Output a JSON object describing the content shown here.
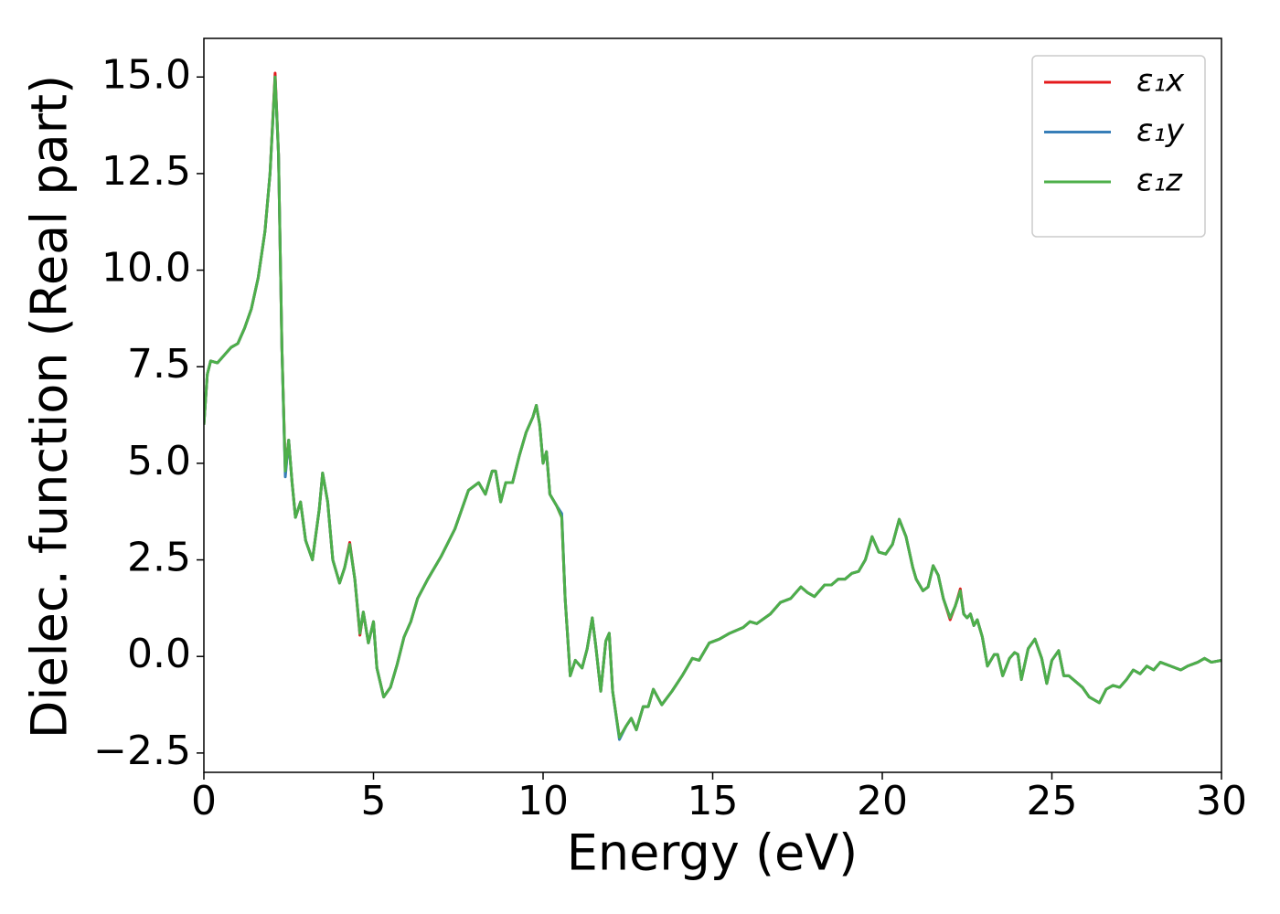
{
  "chart_data": {
    "type": "line",
    "xlabel": "Energy (eV)",
    "ylabel": "Dielec. function (Real part)",
    "xlim": [
      0,
      30
    ],
    "ylim": [
      -3,
      16
    ],
    "xticks": [
      0,
      5,
      10,
      15,
      20,
      25,
      30
    ],
    "yticks": [
      {
        "value": -2.5,
        "label": "−2.5"
      },
      {
        "value": 0,
        "label": "0.0"
      },
      2.5,
      {
        "value": 5,
        "label": "5.0"
      },
      7.5,
      {
        "value": 10,
        "label": "10.0"
      },
      12.5,
      {
        "value": 15,
        "label": "15.0"
      }
    ],
    "legend": "upper right",
    "x": [
      0,
      0.1,
      0.2,
      0.4,
      0.6,
      0.8,
      1.0,
      1.2,
      1.4,
      1.6,
      1.8,
      1.95,
      2.1,
      2.2,
      2.3,
      2.4,
      2.5,
      2.6,
      2.7,
      2.85,
      3.0,
      3.2,
      3.4,
      3.5,
      3.65,
      3.8,
      4.0,
      4.15,
      4.3,
      4.45,
      4.6,
      4.7,
      4.85,
      5.0,
      5.1,
      5.3,
      5.5,
      5.7,
      5.9,
      6.1,
      6.3,
      6.6,
      7.0,
      7.4,
      7.8,
      8.1,
      8.3,
      8.5,
      8.6,
      8.75,
      8.9,
      9.1,
      9.3,
      9.5,
      9.7,
      9.8,
      9.9,
      10.0,
      10.1,
      10.2,
      10.4,
      10.55,
      10.65,
      10.8,
      10.95,
      11.15,
      11.3,
      11.45,
      11.55,
      11.7,
      11.85,
      11.95,
      12.05,
      12.25,
      12.45,
      12.6,
      12.75,
      12.95,
      13.1,
      13.25,
      13.5,
      13.8,
      14.1,
      14.4,
      14.6,
      14.9,
      15.2,
      15.5,
      15.9,
      16.1,
      16.3,
      16.7,
      17.0,
      17.3,
      17.6,
      17.8,
      18.0,
      18.3,
      18.5,
      18.7,
      18.9,
      19.1,
      19.3,
      19.5,
      19.7,
      19.9,
      20.1,
      20.3,
      20.5,
      20.7,
      20.9,
      21.0,
      21.2,
      21.35,
      21.5,
      21.65,
      21.8,
      22.0,
      22.15,
      22.3,
      22.4,
      22.5,
      22.6,
      22.7,
      22.8,
      22.95,
      23.1,
      23.3,
      23.4,
      23.55,
      23.75,
      23.9,
      24.0,
      24.1,
      24.3,
      24.5,
      24.7,
      24.85,
      25.0,
      25.2,
      25.35,
      25.5,
      25.7,
      25.9,
      26.1,
      26.4,
      26.6,
      26.8,
      27.0,
      27.2,
      27.4,
      27.6,
      27.8,
      28.0,
      28.2,
      28.5,
      28.8,
      29.0,
      29.3,
      29.5,
      29.7,
      30.0
    ],
    "series": [
      {
        "name": "ε₁x",
        "color": "#e41a1c",
        "values": [
          6.0,
          7.3,
          7.65,
          7.6,
          7.8,
          8.0,
          8.1,
          8.5,
          9.0,
          9.8,
          11.0,
          12.5,
          15.1,
          13.0,
          8.0,
          4.85,
          5.6,
          4.5,
          3.6,
          4.0,
          3.0,
          2.5,
          3.8,
          4.75,
          4.0,
          2.5,
          1.9,
          2.3,
          2.95,
          2.0,
          0.55,
          1.15,
          0.35,
          0.9,
          -0.3,
          -1.05,
          -0.8,
          -0.2,
          0.5,
          0.9,
          1.5,
          2.0,
          2.6,
          3.3,
          4.3,
          4.5,
          4.2,
          4.8,
          4.8,
          4.0,
          4.5,
          4.5,
          5.2,
          5.8,
          6.2,
          6.5,
          6.0,
          5.0,
          5.3,
          4.2,
          3.9,
          3.6,
          1.5,
          -0.5,
          -0.1,
          -0.3,
          0.2,
          1.0,
          0.3,
          -0.9,
          0.4,
          0.6,
          -0.9,
          -2.1,
          -1.8,
          -1.6,
          -1.9,
          -1.3,
          -1.3,
          -0.85,
          -1.25,
          -0.9,
          -0.5,
          -0.05,
          -0.1,
          0.35,
          0.45,
          0.6,
          0.75,
          0.9,
          0.85,
          1.1,
          1.4,
          1.5,
          1.8,
          1.65,
          1.55,
          1.85,
          1.85,
          2.0,
          2.0,
          2.15,
          2.2,
          2.5,
          3.1,
          2.7,
          2.65,
          2.9,
          3.55,
          3.1,
          2.3,
          2.0,
          1.7,
          1.8,
          2.35,
          2.1,
          1.5,
          0.95,
          1.3,
          1.75,
          1.1,
          1.0,
          1.1,
          0.8,
          0.95,
          0.5,
          -0.25,
          0.05,
          0.05,
          -0.5,
          -0.05,
          0.1,
          0.05,
          -0.6,
          0.2,
          0.45,
          -0.05,
          -0.7,
          -0.1,
          0.15,
          -0.5,
          -0.5,
          -0.65,
          -0.8,
          -1.05,
          -1.2,
          -0.85,
          -0.75,
          -0.8,
          -0.6,
          -0.35,
          -0.45,
          -0.25,
          -0.35,
          -0.15,
          -0.25,
          -0.35,
          -0.25,
          -0.15,
          -0.05,
          -0.15,
          -0.1
        ]
      },
      {
        "name": "ε₁y",
        "color": "#377eb8",
        "values": [
          6.0,
          7.3,
          7.65,
          7.6,
          7.8,
          8.0,
          8.1,
          8.5,
          9.0,
          9.8,
          11.0,
          12.5,
          15.0,
          13.0,
          8.0,
          4.65,
          5.6,
          4.5,
          3.6,
          4.0,
          3.0,
          2.5,
          3.8,
          4.75,
          4.0,
          2.5,
          1.9,
          2.3,
          2.9,
          2.0,
          0.6,
          1.15,
          0.35,
          0.9,
          -0.3,
          -1.05,
          -0.8,
          -0.2,
          0.5,
          0.9,
          1.5,
          2.0,
          2.6,
          3.3,
          4.3,
          4.5,
          4.2,
          4.8,
          4.8,
          4.0,
          4.5,
          4.5,
          5.2,
          5.8,
          6.2,
          6.5,
          6.0,
          5.0,
          5.3,
          4.2,
          3.9,
          3.7,
          1.5,
          -0.5,
          -0.1,
          -0.3,
          0.2,
          1.0,
          0.3,
          -0.9,
          0.4,
          0.6,
          -0.9,
          -2.15,
          -1.8,
          -1.6,
          -1.9,
          -1.3,
          -1.3,
          -0.85,
          -1.25,
          -0.9,
          -0.5,
          -0.05,
          -0.1,
          0.35,
          0.45,
          0.6,
          0.75,
          0.9,
          0.85,
          1.1,
          1.4,
          1.5,
          1.8,
          1.65,
          1.55,
          1.85,
          1.85,
          2.0,
          2.0,
          2.15,
          2.2,
          2.5,
          3.1,
          2.7,
          2.65,
          2.9,
          3.55,
          3.1,
          2.3,
          2.0,
          1.7,
          1.8,
          2.35,
          2.1,
          1.5,
          1.0,
          1.3,
          1.7,
          1.1,
          1.0,
          1.1,
          0.8,
          0.95,
          0.5,
          -0.25,
          0.05,
          0.05,
          -0.5,
          -0.05,
          0.1,
          0.05,
          -0.6,
          0.2,
          0.45,
          -0.05,
          -0.7,
          -0.1,
          0.15,
          -0.5,
          -0.5,
          -0.65,
          -0.8,
          -1.05,
          -1.2,
          -0.85,
          -0.75,
          -0.8,
          -0.6,
          -0.35,
          -0.45,
          -0.25,
          -0.35,
          -0.15,
          -0.25,
          -0.35,
          -0.25,
          -0.15,
          -0.05,
          -0.15,
          -0.1
        ]
      },
      {
        "name": "ε₁z",
        "color": "#4daf4a",
        "values": [
          6.0,
          7.3,
          7.65,
          7.6,
          7.8,
          8.0,
          8.1,
          8.5,
          9.0,
          9.8,
          11.0,
          12.5,
          15.0,
          13.0,
          8.0,
          4.8,
          5.6,
          4.5,
          3.6,
          4.0,
          3.0,
          2.5,
          3.8,
          4.75,
          4.0,
          2.5,
          1.9,
          2.3,
          2.9,
          2.0,
          0.6,
          1.15,
          0.35,
          0.9,
          -0.3,
          -1.05,
          -0.8,
          -0.2,
          0.5,
          0.9,
          1.5,
          2.0,
          2.6,
          3.3,
          4.3,
          4.5,
          4.2,
          4.8,
          4.8,
          4.0,
          4.5,
          4.5,
          5.2,
          5.8,
          6.2,
          6.5,
          6.0,
          5.0,
          5.3,
          4.2,
          3.9,
          3.6,
          1.5,
          -0.5,
          -0.1,
          -0.3,
          0.2,
          1.0,
          0.3,
          -0.9,
          0.4,
          0.6,
          -0.9,
          -2.1,
          -1.8,
          -1.6,
          -1.9,
          -1.3,
          -1.3,
          -0.85,
          -1.25,
          -0.9,
          -0.5,
          -0.05,
          -0.1,
          0.35,
          0.45,
          0.6,
          0.75,
          0.9,
          0.85,
          1.1,
          1.4,
          1.5,
          1.8,
          1.65,
          1.55,
          1.85,
          1.85,
          2.0,
          2.0,
          2.15,
          2.2,
          2.5,
          3.1,
          2.7,
          2.65,
          2.9,
          3.55,
          3.1,
          2.3,
          2.0,
          1.7,
          1.8,
          2.35,
          2.1,
          1.5,
          1.0,
          1.3,
          1.7,
          1.1,
          1.0,
          1.1,
          0.8,
          0.95,
          0.5,
          -0.25,
          0.05,
          0.05,
          -0.5,
          -0.05,
          0.1,
          0.05,
          -0.6,
          0.2,
          0.45,
          -0.05,
          -0.7,
          -0.1,
          0.15,
          -0.5,
          -0.5,
          -0.65,
          -0.8,
          -1.05,
          -1.2,
          -0.85,
          -0.75,
          -0.8,
          -0.6,
          -0.35,
          -0.45,
          -0.25,
          -0.35,
          -0.15,
          -0.25,
          -0.35,
          -0.25,
          -0.15,
          -0.05,
          -0.15,
          -0.1
        ]
      }
    ]
  }
}
